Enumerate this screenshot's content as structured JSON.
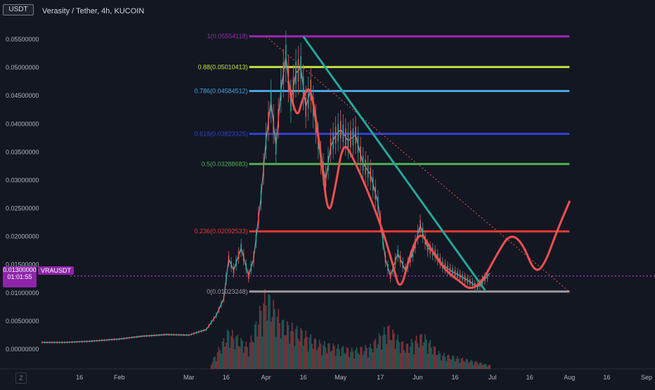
{
  "header": {
    "symbol_badge": "USDT",
    "title": "Verasity / Tether, 4h, KUCOIN"
  },
  "current_price": {
    "value": "0.01300000",
    "countdown": "01:01:55",
    "ticker": "VRAUSDT"
  },
  "colors": {
    "background": "#131722",
    "fib_1": "#9c27b0",
    "fib_088": "#c0e040",
    "fib_0786": "#4aa3df",
    "fib_0618": "#3040d0",
    "fib_05": "#4caf50",
    "fib_0236": "#e53935",
    "fib_0": "#9e9e9e",
    "trendline": "#26a69a",
    "projection": "#f05050",
    "price_line": "#e040fb",
    "candle_up": "#26a69a",
    "candle_down": "#ef5350"
  },
  "icons": {
    "timezone": "Z"
  },
  "chart_data": {
    "type": "line",
    "title": "Verasity / Tether, 4h, KUCOIN",
    "xlabel": "",
    "ylabel": "",
    "ylim": [
      -0.0035,
      0.0595
    ],
    "yticks": [
      {
        "value": 0.0,
        "label": "0.00000000"
      },
      {
        "value": 0.005,
        "label": "0.00500000"
      },
      {
        "value": 0.01,
        "label": "0.01000000"
      },
      {
        "value": 0.015,
        "label": "0.01500000"
      },
      {
        "value": 0.02,
        "label": "0.02000000"
      },
      {
        "value": 0.025,
        "label": "0.02500000"
      },
      {
        "value": 0.03,
        "label": "0.03000000"
      },
      {
        "value": 0.035,
        "label": "0.03500000"
      },
      {
        "value": 0.04,
        "label": "0.04000000"
      },
      {
        "value": 0.045,
        "label": "0.04500000"
      },
      {
        "value": 0.05,
        "label": "0.05000000"
      },
      {
        "value": 0.055,
        "label": "0.05500000"
      }
    ],
    "xticks": [
      {
        "date": "2021-01-16",
        "label": "16"
      },
      {
        "date": "2021-02-01",
        "label": "Feb"
      },
      {
        "date": "2021-03-01",
        "label": "Mar"
      },
      {
        "date": "2021-03-16",
        "label": "16"
      },
      {
        "date": "2021-04-01",
        "label": "Apr"
      },
      {
        "date": "2021-04-16",
        "label": "16"
      },
      {
        "date": "2021-05-01",
        "label": "May"
      },
      {
        "date": "2021-05-17",
        "label": "17"
      },
      {
        "date": "2021-06-01",
        "label": "Jun"
      },
      {
        "date": "2021-06-16",
        "label": "16"
      },
      {
        "date": "2021-07-01",
        "label": "Jul"
      },
      {
        "date": "2021-07-16",
        "label": "16"
      },
      {
        "date": "2021-08-01",
        "label": "Aug"
      },
      {
        "date": "2021-08-16",
        "label": "16"
      },
      {
        "date": "2021-09-01",
        "label": "Sep"
      }
    ],
    "fib_levels": [
      {
        "ratio": "1",
        "label": "1(0.05554118)",
        "value": 0.05554118,
        "color": "#9c27b0"
      },
      {
        "ratio": "0.88",
        "label": "0.88(0.05010413)",
        "value": 0.05010413,
        "color": "#c0e040"
      },
      {
        "ratio": "0.786",
        "label": "0.786(0.04584512)",
        "value": 0.04584512,
        "color": "#4aa3df"
      },
      {
        "ratio": "0.618",
        "label": "0.618(0.03823325)",
        "value": 0.03823325,
        "color": "#3040d0"
      },
      {
        "ratio": "0.5",
        "label": "0.5(0.03288683)",
        "value": 0.03288683,
        "color": "#4caf50"
      },
      {
        "ratio": "0.236",
        "label": "0.236(0.02092533)",
        "value": 0.02092533,
        "color": "#e53935"
      },
      {
        "ratio": "0",
        "label": "0(0.01023248)",
        "value": 0.01023248,
        "color": "#9e9e9e"
      }
    ],
    "fib_start_date": "2021-04-14",
    "fib_end_date": "2021-08-01",
    "series": [
      {
        "kind": "price",
        "values": [
          {
            "date": "2021-01-01",
            "value": 0.0012
          },
          {
            "date": "2021-01-10",
            "value": 0.0012
          },
          {
            "date": "2021-01-20",
            "value": 0.0014
          },
          {
            "date": "2021-02-01",
            "value": 0.0018
          },
          {
            "date": "2021-02-10",
            "value": 0.0023
          },
          {
            "date": "2021-02-20",
            "value": 0.0026
          },
          {
            "date": "2021-03-01",
            "value": 0.0025
          },
          {
            "date": "2021-03-08",
            "value": 0.0035
          },
          {
            "date": "2021-03-12",
            "value": 0.006
          },
          {
            "date": "2021-03-15",
            "value": 0.009
          },
          {
            "date": "2021-03-17",
            "value": 0.016
          },
          {
            "date": "2021-03-19",
            "value": 0.014
          },
          {
            "date": "2021-03-22",
            "value": 0.018
          },
          {
            "date": "2021-03-25",
            "value": 0.013
          },
          {
            "date": "2021-03-27",
            "value": 0.016
          },
          {
            "date": "2021-03-30",
            "value": 0.027
          },
          {
            "date": "2021-04-01",
            "value": 0.037
          },
          {
            "date": "2021-04-03",
            "value": 0.044
          },
          {
            "date": "2021-04-05",
            "value": 0.036
          },
          {
            "date": "2021-04-07",
            "value": 0.046
          },
          {
            "date": "2021-04-09",
            "value": 0.052
          },
          {
            "date": "2021-04-11",
            "value": 0.044
          },
          {
            "date": "2021-04-13",
            "value": 0.049
          },
          {
            "date": "2021-04-15",
            "value": 0.05
          },
          {
            "date": "2021-04-17",
            "value": 0.043
          },
          {
            "date": "2021-04-19",
            "value": 0.046
          },
          {
            "date": "2021-04-21",
            "value": 0.04
          },
          {
            "date": "2021-04-23",
            "value": 0.034
          },
          {
            "date": "2021-04-25",
            "value": 0.03
          },
          {
            "date": "2021-04-27",
            "value": 0.036
          },
          {
            "date": "2021-04-29",
            "value": 0.038
          },
          {
            "date": "2021-05-01",
            "value": 0.039
          },
          {
            "date": "2021-05-04",
            "value": 0.037
          },
          {
            "date": "2021-05-07",
            "value": 0.038
          },
          {
            "date": "2021-05-10",
            "value": 0.033
          },
          {
            "date": "2021-05-13",
            "value": 0.031
          },
          {
            "date": "2021-05-16",
            "value": 0.026
          },
          {
            "date": "2021-05-19",
            "value": 0.016
          },
          {
            "date": "2021-05-21",
            "value": 0.013
          },
          {
            "date": "2021-05-24",
            "value": 0.017
          },
          {
            "date": "2021-05-27",
            "value": 0.014
          },
          {
            "date": "2021-05-30",
            "value": 0.017
          },
          {
            "date": "2021-06-02",
            "value": 0.022
          },
          {
            "date": "2021-06-05",
            "value": 0.018
          },
          {
            "date": "2021-06-08",
            "value": 0.017
          },
          {
            "date": "2021-06-11",
            "value": 0.015
          },
          {
            "date": "2021-06-14",
            "value": 0.014
          },
          {
            "date": "2021-06-18",
            "value": 0.013
          },
          {
            "date": "2021-06-22",
            "value": 0.012
          },
          {
            "date": "2021-06-25",
            "value": 0.011
          },
          {
            "date": "2021-06-28",
            "value": 0.0125
          },
          {
            "date": "2021-06-30",
            "value": 0.0135
          }
        ]
      },
      {
        "kind": "projection",
        "values": [
          {
            "date": "2021-04-10",
            "value": 0.0475
          },
          {
            "date": "2021-04-13",
            "value": 0.04
          },
          {
            "date": "2021-04-16",
            "value": 0.045
          },
          {
            "date": "2021-04-19",
            "value": 0.047
          },
          {
            "date": "2021-04-23",
            "value": 0.035
          },
          {
            "date": "2021-04-26",
            "value": 0.023
          },
          {
            "date": "2021-04-29",
            "value": 0.029
          },
          {
            "date": "2021-05-02",
            "value": 0.037
          },
          {
            "date": "2021-05-06",
            "value": 0.034
          },
          {
            "date": "2021-05-12",
            "value": 0.028
          },
          {
            "date": "2021-05-18",
            "value": 0.021
          },
          {
            "date": "2021-05-22",
            "value": 0.015
          },
          {
            "date": "2021-05-25",
            "value": 0.01
          },
          {
            "date": "2021-05-29",
            "value": 0.017
          },
          {
            "date": "2021-06-02",
            "value": 0.021
          },
          {
            "date": "2021-06-06",
            "value": 0.018
          },
          {
            "date": "2021-06-12",
            "value": 0.014
          },
          {
            "date": "2021-06-18",
            "value": 0.012
          },
          {
            "date": "2021-06-22",
            "value": 0.0105
          },
          {
            "date": "2021-06-27",
            "value": 0.012
          },
          {
            "date": "2021-07-03",
            "value": 0.017
          },
          {
            "date": "2021-07-08",
            "value": 0.0205
          },
          {
            "date": "2021-07-13",
            "value": 0.019
          },
          {
            "date": "2021-07-18",
            "value": 0.0135
          },
          {
            "date": "2021-07-22",
            "value": 0.015
          },
          {
            "date": "2021-07-27",
            "value": 0.021
          },
          {
            "date": "2021-08-01",
            "value": 0.0262
          }
        ]
      }
    ],
    "trendline": [
      {
        "date": "2021-04-16",
        "value": 0.0555
      },
      {
        "date": "2021-06-28",
        "value": 0.0105
      }
    ],
    "dotted_line": [
      {
        "date": "2021-04-01",
        "value": 0.0555
      },
      {
        "date": "2021-08-01",
        "value": 0.0102
      }
    ],
    "current_price_line": 0.013,
    "volume": [
      {
        "date": "2021-03-10",
        "value": 0.08
      },
      {
        "date": "2021-03-17",
        "value": 0.5
      },
      {
        "date": "2021-03-25",
        "value": 0.3
      },
      {
        "date": "2021-04-01",
        "value": 1.0
      },
      {
        "date": "2021-04-08",
        "value": 0.6
      },
      {
        "date": "2021-04-15",
        "value": 0.5
      },
      {
        "date": "2021-04-22",
        "value": 0.35
      },
      {
        "date": "2021-04-29",
        "value": 0.3
      },
      {
        "date": "2021-05-06",
        "value": 0.25
      },
      {
        "date": "2021-05-13",
        "value": 0.3
      },
      {
        "date": "2021-05-20",
        "value": 0.55
      },
      {
        "date": "2021-05-27",
        "value": 0.3
      },
      {
        "date": "2021-06-03",
        "value": 0.45
      },
      {
        "date": "2021-06-10",
        "value": 0.2
      },
      {
        "date": "2021-06-17",
        "value": 0.15
      },
      {
        "date": "2021-06-24",
        "value": 0.1
      },
      {
        "date": "2021-06-30",
        "value": 0.05
      }
    ],
    "grid": false,
    "legend": "none"
  }
}
